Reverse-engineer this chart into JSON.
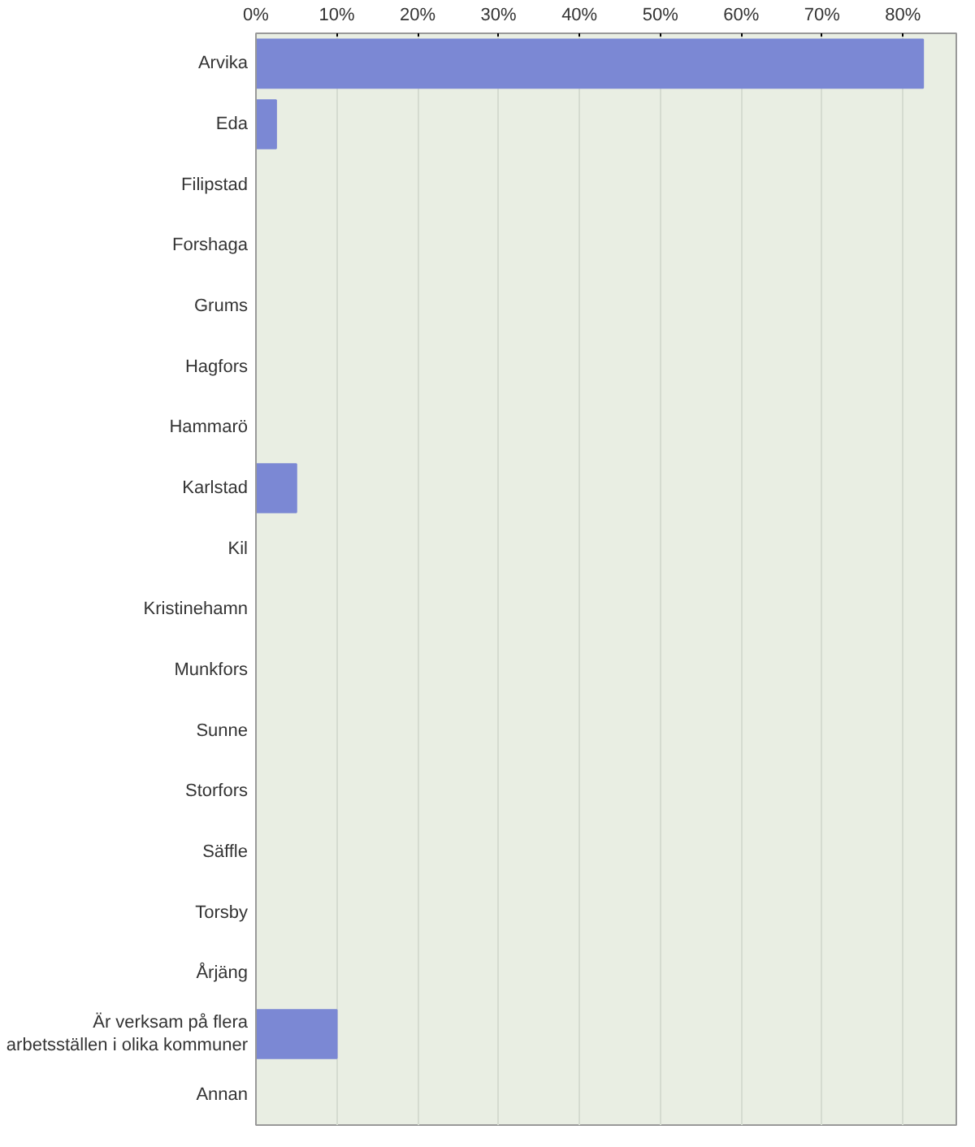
{
  "chart_data": {
    "type": "bar",
    "orientation": "horizontal",
    "categories": [
      "Arvika",
      "Eda",
      "Filipstad",
      "Forshaga",
      "Grums",
      "Hagfors",
      "Hammarö",
      "Karlstad",
      "Kil",
      "Kristinehamn",
      "Munkfors",
      "Sunne",
      "Storfors",
      "Säffle",
      "Torsby",
      "Årjäng",
      "Är verksam på flera arbetsställen i olika kommuner",
      "Annan"
    ],
    "values": [
      82.5,
      2.5,
      0,
      0,
      0,
      0,
      0,
      5,
      0,
      0,
      0,
      0,
      0,
      0,
      0,
      0,
      10,
      0
    ],
    "color": "#7b88d4",
    "xlim": [
      0,
      86.6
    ],
    "xticks": [
      {
        "value": 0,
        "label": "0%"
      },
      {
        "value": 10,
        "label": "10%"
      },
      {
        "value": 20,
        "label": "20%"
      },
      {
        "value": 30,
        "label": "30%"
      },
      {
        "value": 40,
        "label": "40%"
      },
      {
        "value": 50,
        "label": "50%"
      },
      {
        "value": 60,
        "label": "60%"
      },
      {
        "value": 70,
        "label": "70%"
      },
      {
        "value": 80,
        "label": "80%"
      }
    ],
    "grid": "x"
  }
}
